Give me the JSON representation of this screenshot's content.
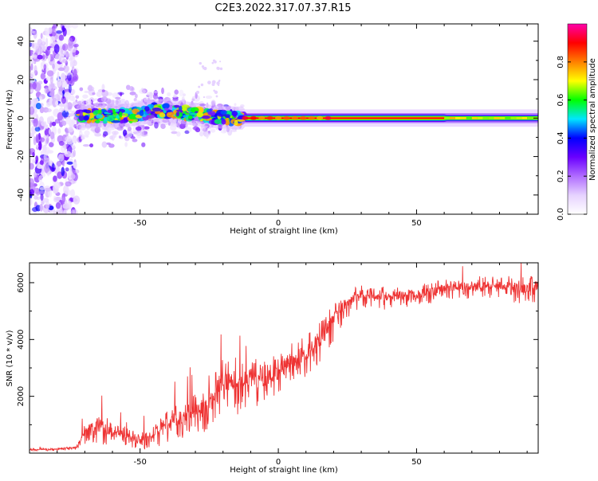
{
  "figure": {
    "title": "C2E3.2022.317.07.37.R15"
  },
  "chart_data": [
    {
      "type": "heatmap",
      "panel": "top",
      "xlabel": "Height of straight line (km)",
      "ylabel": "Frequency (Hz)",
      "xlim": [
        -90,
        94
      ],
      "ylim": [
        -50,
        49
      ],
      "x_ticks": [
        -50,
        0,
        50
      ],
      "y_ticks": [
        -40,
        -20,
        0,
        20,
        40
      ],
      "colorbar": {
        "label": "Normalized spectral amplitude",
        "range": [
          0,
          1
        ],
        "ticks": [
          0.0,
          0.2,
          0.4,
          0.6,
          0.8
        ],
        "colormap": [
          "#ffffff",
          "#e6d2ff",
          "#b06cff",
          "#6a00ff",
          "#0000ff",
          "#00e6ff",
          "#00ff00",
          "#ffff00",
          "#ff8000",
          "#ff0000",
          "#ff00aa"
        ]
      },
      "features": {
        "noise_region_x": [
          -90,
          -73
        ],
        "signal_center_hz": [
          {
            "x": -72,
            "y": 1
          },
          {
            "x": -60,
            "y": 1
          },
          {
            "x": -50,
            "y": 2
          },
          {
            "x": -45,
            "y": 4
          },
          {
            "x": -35,
            "y": 3
          },
          {
            "x": -25,
            "y": 1
          },
          {
            "x": -15,
            "y": 0
          },
          {
            "x": 0,
            "y": 0
          },
          {
            "x": 50,
            "y": 0
          },
          {
            "x": 94,
            "y": 0
          }
        ],
        "strong_band_start_x": -12
      }
    },
    {
      "type": "line",
      "panel": "bottom",
      "xlabel": "Height of straight line (km)",
      "ylabel": "SNR (10 * v/v)",
      "xlim": [
        -90,
        94
      ],
      "ylim": [
        0,
        6700
      ],
      "x_ticks": [
        -50,
        0,
        50
      ],
      "y_ticks": [
        2000,
        4000,
        6000
      ],
      "color": "#ee3333",
      "series": [
        {
          "x": [
            -90,
            -80,
            -73,
            -70,
            -65,
            -60,
            -55,
            -50,
            -45,
            -40,
            -35,
            -30,
            -25,
            -20,
            -15,
            -10,
            -5,
            0,
            5,
            10,
            15,
            20,
            25,
            30,
            40,
            50,
            60,
            70,
            80,
            90,
            94
          ],
          "values": [
            120,
            150,
            200,
            800,
            1050,
            700,
            650,
            500,
            700,
            1000,
            1300,
            1500,
            1700,
            2600,
            2300,
            2700,
            2600,
            2900,
            3300,
            3500,
            4000,
            4700,
            5300,
            5600,
            5500,
            5600,
            5800,
            5900,
            5900,
            5800,
            5900
          ],
          "spread": [
            50,
            60,
            80,
            500,
            700,
            500,
            400,
            400,
            500,
            700,
            800,
            900,
            1000,
            1100,
            1000,
            1000,
            1000,
            900,
            900,
            900,
            900,
            800,
            600,
            500,
            500,
            500,
            450,
            450,
            500,
            600,
            600
          ]
        }
      ]
    }
  ]
}
